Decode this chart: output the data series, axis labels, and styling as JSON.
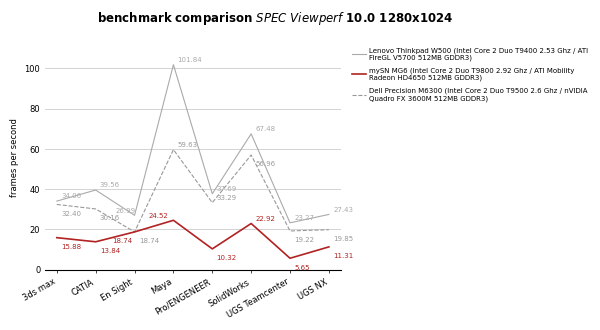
{
  "title": "benchmark comparison SPEC Viewperf 10.0 1280x1024",
  "ylabel": "frames per second",
  "categories": [
    "3ds max",
    "CATIA",
    "En Sight",
    "Maya",
    "Pro/ENGENEER",
    "SolidWorks",
    "UGS Teamcenter",
    "UGS NX"
  ],
  "series": [
    {
      "name": "Lenovo Thinkpad W500 (Intel Core 2 Duo T9400 2.53 Ghz / ATI\nFireGL V5700 512MB GDDR3)",
      "values": [
        34.06,
        39.56,
        26.99,
        101.84,
        37.69,
        67.48,
        23.27,
        27.43
      ],
      "color": "#aaaaaa",
      "linewidth": 0.8,
      "linestyle": "-",
      "zorder": 2
    },
    {
      "name": "mySN MG6 (Intel Core 2 Duo T9800 2.92 Ghz / ATI Mobility\nRadeon HD4650 512MB GDDR3)",
      "values": [
        15.88,
        13.84,
        18.74,
        24.52,
        10.32,
        22.92,
        5.65,
        11.31
      ],
      "color": "#b22222",
      "linewidth": 1.2,
      "linestyle": "-",
      "zorder": 3
    },
    {
      "name": "Dell Precision M6300 (Intel Core 2 Duo T9500 2.6 Ghz / nVIDIA\nQuadro FX 3600M 512MB GDDR3)",
      "values": [
        32.4,
        30.16,
        18.74,
        59.63,
        33.29,
        56.96,
        19.22,
        19.85
      ],
      "color": "#999999",
      "linewidth": 0.8,
      "linestyle": "--",
      "zorder": 2
    }
  ],
  "annotations": [
    {
      "series": 0,
      "idx": 0,
      "value": "34.06",
      "ox": 3,
      "oy": 2
    },
    {
      "series": 0,
      "idx": 1,
      "value": "39.56",
      "ox": 3,
      "oy": 2
    },
    {
      "series": 0,
      "idx": 2,
      "value": "26.99",
      "ox": -14,
      "oy": 2
    },
    {
      "series": 0,
      "idx": 3,
      "value": "101.84",
      "ox": 3,
      "oy": 2
    },
    {
      "series": 0,
      "idx": 4,
      "value": "37.69",
      "ox": 3,
      "oy": 2
    },
    {
      "series": 0,
      "idx": 5,
      "value": "67.48",
      "ox": 3,
      "oy": 2
    },
    {
      "series": 0,
      "idx": 6,
      "value": "23.27",
      "ox": 3,
      "oy": 2
    },
    {
      "series": 0,
      "idx": 7,
      "value": "27.43",
      "ox": 3,
      "oy": 2
    },
    {
      "series": 1,
      "idx": 0,
      "value": "15.88",
      "ox": 3,
      "oy": -8
    },
    {
      "series": 1,
      "idx": 1,
      "value": "13.84",
      "ox": 3,
      "oy": -8
    },
    {
      "series": 1,
      "idx": 2,
      "value": "18.74",
      "ox": -16,
      "oy": -8
    },
    {
      "series": 1,
      "idx": 3,
      "value": "24.52",
      "ox": -18,
      "oy": 2
    },
    {
      "series": 1,
      "idx": 4,
      "value": "10.32",
      "ox": 3,
      "oy": -8
    },
    {
      "series": 1,
      "idx": 5,
      "value": "22.92",
      "ox": 3,
      "oy": 2
    },
    {
      "series": 1,
      "idx": 6,
      "value": "5.65",
      "ox": 3,
      "oy": -8
    },
    {
      "series": 1,
      "idx": 7,
      "value": "11.31",
      "ox": 3,
      "oy": -8
    },
    {
      "series": 2,
      "idx": 0,
      "value": "32.40",
      "ox": 3,
      "oy": -8
    },
    {
      "series": 2,
      "idx": 1,
      "value": "30.16",
      "ox": 3,
      "oy": -8
    },
    {
      "series": 2,
      "idx": 2,
      "value": "18.74",
      "ox": 3,
      "oy": -8
    },
    {
      "series": 2,
      "idx": 3,
      "value": "59.63",
      "ox": 3,
      "oy": 2
    },
    {
      "series": 2,
      "idx": 4,
      "value": "33.29",
      "ox": 3,
      "oy": 2
    },
    {
      "series": 2,
      "idx": 5,
      "value": "56.96",
      "ox": 3,
      "oy": -8
    },
    {
      "series": 2,
      "idx": 6,
      "value": "19.22",
      "ox": 3,
      "oy": -8
    },
    {
      "series": 2,
      "idx": 7,
      "value": "19.85",
      "ox": 3,
      "oy": -8
    }
  ],
  "ylim": [
    0,
    112
  ],
  "yticks": [
    0,
    20,
    40,
    60,
    80,
    100
  ],
  "background_color": "#ffffff",
  "grid_color": "#cccccc",
  "annotation_fontsize": 5.0,
  "axis_fontsize": 6.0,
  "title_fontsize": 8.5,
  "legend_fontsize": 5.0
}
